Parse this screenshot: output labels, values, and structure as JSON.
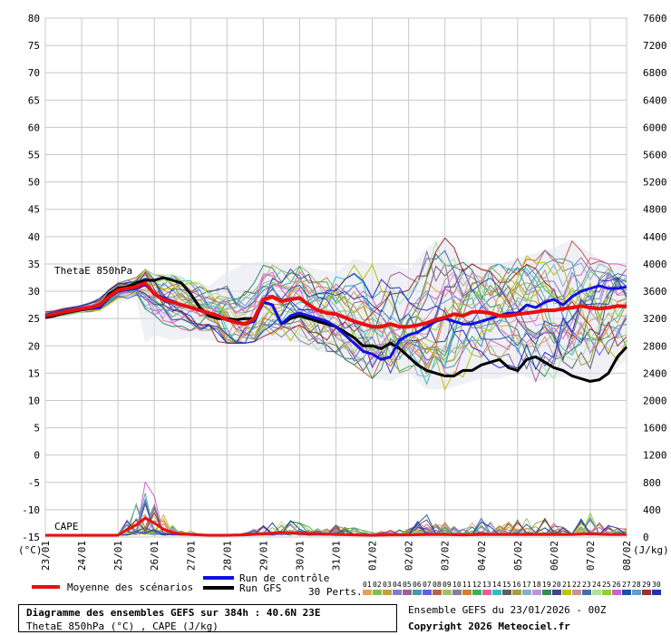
{
  "chart_data": {
    "type": "line",
    "title": "Diagramme des ensembles GEFS sur 384h : 40.6N 23E",
    "subtitle": "ThetaE 850hPa (°C) , CAPE (J/kg)",
    "run_info": "Ensemble GEFS du 23/01/2026 - 00Z",
    "copyright": "Copyright 2026 Meteociel.fr",
    "y_left": {
      "unit": "(°C)",
      "ticks": [
        80,
        75,
        70,
        65,
        60,
        55,
        50,
        45,
        40,
        35,
        30,
        25,
        20,
        15,
        10,
        5,
        0,
        -5,
        -10,
        -15
      ],
      "range": [
        -15,
        80
      ]
    },
    "y_right": {
      "unit": "(J/kg)",
      "ticks": [
        7600,
        7200,
        6800,
        6400,
        6000,
        5600,
        5200,
        4800,
        4400,
        4000,
        3600,
        3200,
        2800,
        2400,
        2000,
        1600,
        1200,
        800,
        400,
        0
      ],
      "range": [
        0,
        7600
      ]
    },
    "x_range": [
      0,
      384
    ],
    "x_ticks": [
      "23/01",
      "24/01",
      "25/01",
      "26/01",
      "27/01",
      "28/01",
      "29/01",
      "30/01",
      "31/01",
      "01/02",
      "02/02",
      "03/02",
      "04/02",
      "05/02",
      "06/02",
      "07/02",
      "08/02"
    ],
    "panel_labels": {
      "thetae": "ThetaE 850hPa",
      "cape": "CAPE"
    },
    "ensemble_label": "30 Perts.",
    "member_numbers": [
      "01",
      "02",
      "03",
      "04",
      "05",
      "06",
      "07",
      "08",
      "09",
      "10",
      "11",
      "12",
      "13",
      "14",
      "15",
      "16",
      "17",
      "18",
      "19",
      "20",
      "21",
      "22",
      "23",
      "24",
      "25",
      "26",
      "27",
      "28",
      "29",
      "30"
    ],
    "member_colors": [
      "#e8a050",
      "#80c050",
      "#c0a040",
      "#8080c0",
      "#a06090",
      "#40a0a0",
      "#6060e0",
      "#c06040",
      "#a0c060",
      "#8080a0",
      "#d08030",
      "#40b060",
      "#e060a0",
      "#30c0c0",
      "#606060",
      "#a0a040",
      "#80b0d0",
      "#c090e0",
      "#309050",
      "#4040a0",
      "#c0c000",
      "#d09090",
      "#4070b0",
      "#b0e0a0",
      "#90d030",
      "#d060d0",
      "#2050a0",
      "#60a0c0",
      "#a03030",
      "#2030c0"
    ],
    "legend": {
      "mean": "Moyenne des scénarios",
      "control": "Run de contrôle",
      "gfs": "Run GFS"
    },
    "series": [
      {
        "name": "Moyenne des scénarios",
        "color": "#e81010",
        "x": [
          0,
          6,
          12,
          18,
          24,
          30,
          36,
          42,
          48,
          54,
          60,
          66,
          72,
          78,
          84,
          90,
          96,
          102,
          108,
          114,
          120,
          126,
          132,
          138,
          144,
          150,
          156,
          162,
          168,
          174,
          180,
          186,
          192,
          198,
          204,
          210,
          216,
          222,
          228,
          234,
          240,
          246,
          252,
          258,
          264,
          270,
          276,
          282,
          288,
          294,
          300,
          306,
          312,
          318,
          324,
          330,
          336,
          342,
          348,
          354,
          360,
          366,
          372,
          378,
          384
        ],
        "y": [
          25.5,
          25.8,
          26.2,
          26.5,
          26.8,
          27,
          27.5,
          29,
          30.2,
          30.5,
          30.8,
          31.5,
          29.5,
          28.5,
          28,
          27.5,
          27,
          26.5,
          26,
          25.5,
          24.8,
          24.3,
          24,
          25,
          28.5,
          29,
          28.2,
          28.5,
          28.8,
          27.5,
          26.5,
          26,
          25.8,
          25.2,
          24.5,
          24,
          23.5,
          23.5,
          24,
          23.5,
          23.5,
          23.8,
          24.2,
          24.8,
          25.2,
          25.8,
          25.5,
          26.2,
          26.2,
          26,
          25.5,
          25.5,
          25.8,
          26,
          26.2,
          26.5,
          26.5,
          26.8,
          27,
          27.3,
          27,
          26.8,
          27,
          27.3,
          27.2
        ]
      },
      {
        "name": "Run de contrôle",
        "color": "#1010e0",
        "x": [
          0,
          6,
          12,
          18,
          24,
          30,
          36,
          42,
          48,
          54,
          60,
          66,
          72,
          78,
          84,
          90,
          96,
          102,
          108,
          114,
          120,
          126,
          132,
          138,
          144,
          150,
          156,
          162,
          168,
          174,
          180,
          186,
          192,
          198,
          204,
          210,
          216,
          222,
          228,
          234,
          240,
          246,
          252,
          258,
          264,
          270,
          276,
          282,
          288,
          294,
          300,
          306,
          312,
          318,
          324,
          330,
          336,
          342,
          348,
          354,
          360,
          366,
          372,
          378,
          384
        ],
        "y": [
          25.5,
          25.8,
          26.2,
          26.5,
          26.8,
          26.8,
          27,
          28.8,
          30,
          30.3,
          30.5,
          31.2,
          29.5,
          28.8,
          28.2,
          27.5,
          27,
          26.5,
          26,
          25.5,
          24.8,
          24.5,
          24,
          24.5,
          28,
          27.5,
          24,
          25.5,
          26,
          25.5,
          25,
          24.5,
          23.5,
          22,
          20.5,
          19,
          18.5,
          17.5,
          18,
          21,
          22,
          22.5,
          23.5,
          24.5,
          25,
          24.5,
          24,
          24,
          24.5,
          25,
          25.5,
          26,
          26,
          27.5,
          27,
          28,
          28.5,
          27.5,
          29,
          30,
          30.5,
          31,
          30.5,
          30.5,
          30.8
        ]
      },
      {
        "name": "Run GFS",
        "color": "#000000",
        "x": [
          0,
          6,
          12,
          18,
          24,
          30,
          36,
          42,
          48,
          54,
          60,
          66,
          72,
          78,
          84,
          90,
          96,
          102,
          108,
          114,
          120,
          126,
          132,
          138,
          144,
          150,
          156,
          162,
          168,
          174,
          180,
          186,
          192,
          198,
          204,
          210,
          216,
          222,
          228,
          234,
          240,
          246,
          252,
          258,
          264,
          270,
          276,
          282,
          288,
          294,
          300,
          306,
          312,
          318,
          324,
          330,
          336,
          342,
          348,
          354,
          360,
          366,
          372,
          378,
          384
        ],
        "y": [
          25.2,
          25.5,
          26,
          26.3,
          26.6,
          26.8,
          27.2,
          29.5,
          30.5,
          30.8,
          31.5,
          32,
          32,
          32.5,
          32,
          31.5,
          29.5,
          27,
          25.5,
          25,
          25,
          24.8,
          25,
          25,
          28,
          27.5,
          24,
          25,
          25.5,
          25,
          24.5,
          24,
          23.5,
          22.5,
          21.5,
          20,
          20,
          19.5,
          20.5,
          19.5,
          18,
          16.5,
          15.5,
          15,
          14.5,
          14.5,
          15.5,
          15.5,
          16.5,
          17,
          17.5,
          16,
          15.5,
          17.5,
          18,
          17,
          16,
          15.5,
          14.5,
          14,
          13.5,
          13.8,
          15,
          18,
          19.8
        ]
      }
    ],
    "ensemble_envelope": {
      "x": [
        0,
        12,
        24,
        36,
        48,
        60,
        66,
        72,
        84,
        96,
        108,
        120,
        132,
        144,
        156,
        168,
        180,
        192,
        204,
        216,
        228,
        240,
        252,
        264,
        276,
        288,
        300,
        312,
        324,
        336,
        348,
        360,
        372,
        384
      ],
      "max": [
        26.5,
        27,
        27.5,
        29,
        31.5,
        32.5,
        34,
        33,
        33,
        32,
        31,
        33.5,
        35,
        35.5,
        35,
        35,
        34,
        33.5,
        36,
        35,
        35,
        34,
        38,
        40,
        36,
        34,
        35,
        36,
        37,
        38,
        39.5,
        37,
        35,
        35
      ],
      "min": [
        25,
        25.5,
        26,
        26.5,
        28,
        28.5,
        20.5,
        22,
        21,
        21.5,
        21,
        20.5,
        20.5,
        21,
        21,
        20.5,
        19,
        18.5,
        16.5,
        14,
        13.5,
        15,
        12,
        12,
        13,
        14,
        14,
        15,
        13.5,
        14,
        14.5,
        13,
        14.5,
        17.5
      ]
    },
    "cape": {
      "x": [
        0,
        12,
        24,
        36,
        48,
        54,
        60,
        66,
        72,
        78,
        84,
        90,
        96,
        102,
        108,
        120,
        132,
        144,
        156,
        168,
        180,
        192,
        204,
        216,
        228,
        240,
        252,
        264,
        276,
        288,
        300,
        312,
        324,
        336,
        348,
        360,
        372,
        384
      ],
      "mean": [
        0,
        0,
        0,
        0,
        0,
        80,
        150,
        250,
        180,
        90,
        40,
        20,
        10,
        5,
        0,
        0,
        5,
        20,
        40,
        30,
        20,
        10,
        5,
        0,
        5,
        5,
        10,
        10,
        5,
        10,
        10,
        10,
        10,
        10,
        10,
        20,
        10,
        10
      ],
      "max": [
        0,
        0,
        0,
        0,
        10,
        250,
        500,
        800,
        600,
        300,
        150,
        100,
        80,
        20,
        10,
        10,
        30,
        150,
        280,
        200,
        100,
        150,
        120,
        40,
        80,
        100,
        300,
        200,
        100,
        300,
        150,
        250,
        300,
        200,
        180,
        350,
        150,
        100
      ]
    }
  }
}
